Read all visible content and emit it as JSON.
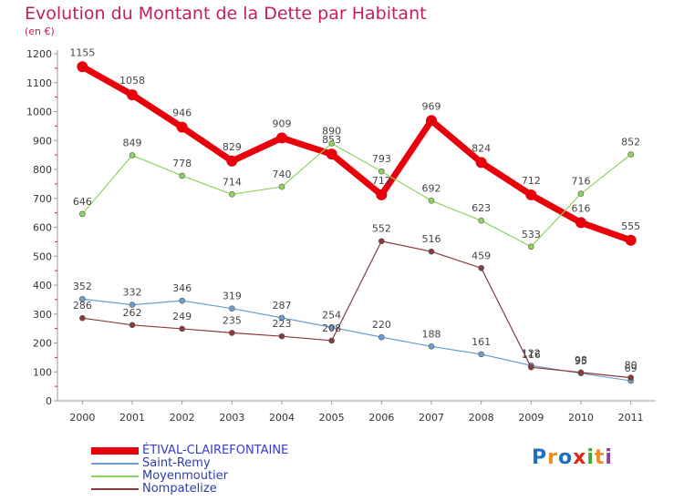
{
  "chart_data": {
    "type": "line",
    "title": "Evolution du Montant de la Dette par Habitant",
    "subtitle": "(en €)",
    "categories": [
      "2000",
      "2001",
      "2002",
      "2003",
      "2004",
      "2005",
      "2006",
      "2007",
      "2008",
      "2009",
      "2010",
      "2011"
    ],
    "ylim": [
      0,
      1200
    ],
    "yticks": [
      0,
      100,
      200,
      300,
      400,
      500,
      600,
      700,
      800,
      900,
      1000,
      1100,
      1200
    ],
    "grid": false,
    "legend_placement": "bottom-left",
    "series": [
      {
        "name": "ÉTIVAL-CLAIREFONTAINE",
        "color": "#e8000b",
        "values": [
          1155,
          1058,
          946,
          829,
          909,
          853,
          712,
          969,
          824,
          712,
          616,
          555
        ],
        "labels": [
          "1155",
          "1058",
          "946",
          "829",
          "909",
          "853",
          "712",
          "969",
          "824",
          "712",
          "616",
          "555"
        ]
      },
      {
        "name": "Saint-Remy",
        "color": "#6a9fd0",
        "values": [
          352,
          332,
          346,
          319,
          287,
          254,
          220,
          188,
          161,
          122,
          95,
          69
        ],
        "labels": [
          "352",
          "332",
          "346",
          "319",
          "287",
          "254",
          "220",
          "188",
          "161",
          "122",
          "95",
          "69"
        ]
      },
      {
        "name": "Moyenmoutier",
        "color": "#8dd35f",
        "values": [
          646,
          849,
          778,
          714,
          740,
          890,
          793,
          692,
          623,
          533,
          716,
          852
        ],
        "labels": [
          "646",
          "849",
          "778",
          "714",
          "740",
          "890",
          "793",
          "692",
          "623",
          "533",
          "716",
          "852"
        ]
      },
      {
        "name": "Nompatelize",
        "color": "#8b3a3a",
        "values": [
          286,
          262,
          249,
          235,
          223,
          208,
          552,
          516,
          459,
          116,
          98,
          80
        ],
        "labels": [
          "286",
          "262",
          "249",
          "235",
          "223",
          "208",
          "552",
          "516",
          "459",
          "116",
          "98",
          "80"
        ]
      }
    ]
  },
  "logo": {
    "text": "Proxiti",
    "letter_colors": [
      "#1f6fc2",
      "#f08a1e",
      "#1f6fc2",
      "#e5231b",
      "#3aa935",
      "#f08a1e",
      "#8a3ea0"
    ]
  }
}
